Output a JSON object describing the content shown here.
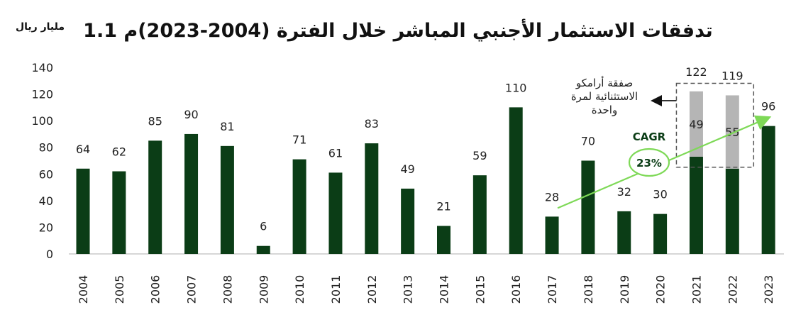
{
  "chart_data": {
    "type": "bar",
    "title": "1.1 تدفقات الاستثمار الأجنبي المباشر خلال الفترة (2004-2023)م",
    "unit_label": "مليار ريال",
    "categories": [
      "2004",
      "2005",
      "2006",
      "2007",
      "2008",
      "2009",
      "2010",
      "2011",
      "2012",
      "2013",
      "2014",
      "2015",
      "2016",
      "2017",
      "2018",
      "2019",
      "2020",
      "2021",
      "2022",
      "2023"
    ],
    "series": [
      {
        "values": [
          64,
          62,
          85,
          90,
          81,
          6,
          71,
          61,
          83,
          49,
          21,
          59,
          110,
          28,
          70,
          32,
          30,
          73,
          64,
          96
        ]
      },
      {
        "values": [
          0,
          0,
          0,
          0,
          0,
          0,
          0,
          0,
          0,
          0,
          0,
          0,
          0,
          0,
          0,
          0,
          0,
          49,
          55,
          0
        ]
      }
    ],
    "data_labels": [
      "64",
      "62",
      "85",
      "90",
      "81",
      "6",
      "71",
      "61",
      "83",
      "49",
      "21",
      "59",
      "110",
      "28",
      "70",
      "32",
      "30",
      "122",
      "119",
      "96"
    ],
    "segment_labels": {
      "2021": "49",
      "2022": "55"
    },
    "yticks": [
      "0",
      "20",
      "40",
      "60",
      "80",
      "100",
      "120",
      "140"
    ],
    "ylim": [
      0,
      140
    ],
    "grid": false,
    "annotations": {
      "aramco_note": [
        "صفقة أرامكو",
        "الاستثنائية لمرة",
        "واحدة"
      ],
      "cagr_label": "CAGR",
      "cagr_value": "23%"
    },
    "colors": {
      "bar": "#0b3d16",
      "extra": "#b5b5b5",
      "trend": "#7ed957",
      "text": "#222222"
    }
  }
}
